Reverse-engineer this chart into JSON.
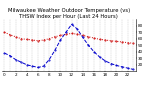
{
  "title": "Milwaukee Weather Outdoor Temperature (vs) THSW Index per Hour (Last 24 Hours)",
  "hours": [
    0,
    1,
    2,
    3,
    4,
    5,
    6,
    7,
    8,
    9,
    10,
    11,
    12,
    13,
    14,
    15,
    16,
    17,
    18,
    19,
    20,
    21,
    22,
    23
  ],
  "temp": [
    70,
    66,
    63,
    60,
    59,
    58,
    57,
    58,
    60,
    63,
    65,
    67,
    68,
    67,
    65,
    63,
    61,
    59,
    58,
    57,
    56,
    55,
    54,
    53
  ],
  "thsw": [
    38,
    34,
    28,
    24,
    20,
    18,
    16,
    18,
    28,
    42,
    58,
    70,
    82,
    75,
    62,
    50,
    40,
    32,
    26,
    22,
    19,
    17,
    15,
    13
  ],
  "temp_color": "#cc0000",
  "thsw_color": "#0000cc",
  "grid_color": "#888888",
  "bg_color": "#ffffff",
  "xlim": [
    -0.5,
    23.5
  ],
  "ylim": [
    10,
    90
  ],
  "yticks": [
    20,
    30,
    40,
    50,
    60,
    70,
    80
  ],
  "title_fontsize": 3.8,
  "tick_fontsize": 3.0
}
